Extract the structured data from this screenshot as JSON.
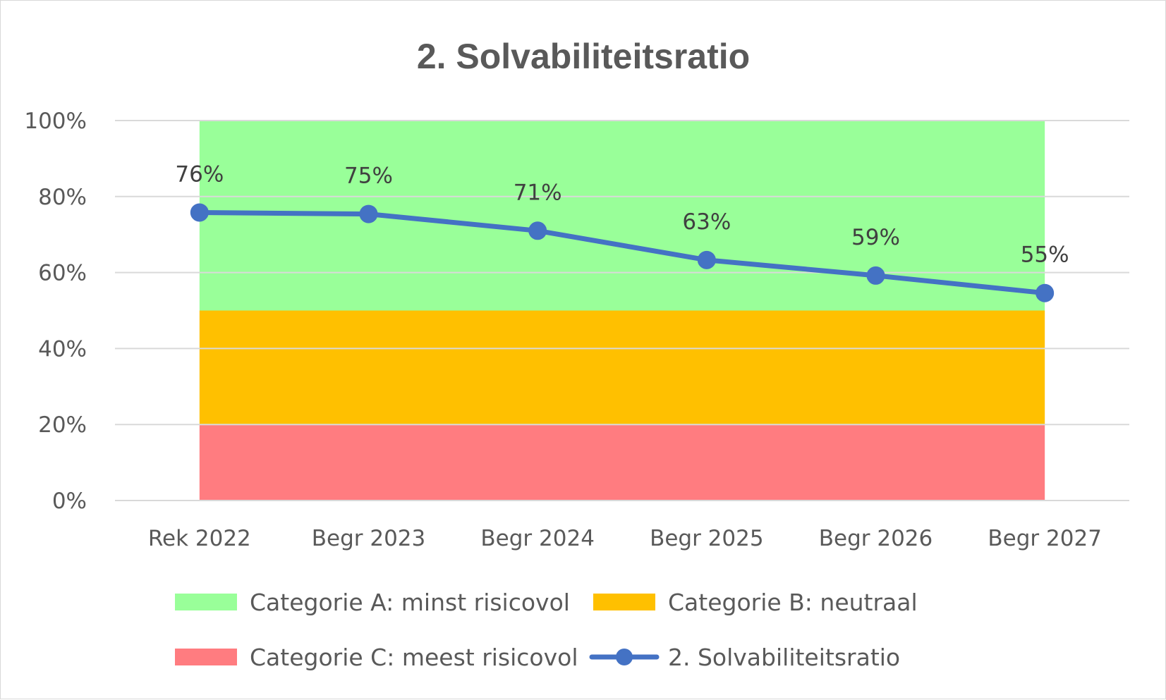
{
  "chart_data": {
    "type": "line",
    "title": "2. Solvabiliteitsratio",
    "xlabel": "",
    "ylabel": "",
    "categories": [
      "Rek 2022",
      "Begr 2023",
      "Begr 2024",
      "Begr 2025",
      "Begr 2026",
      "Begr 2027"
    ],
    "ylim": [
      0,
      100
    ],
    "yticks": [
      0,
      20,
      40,
      60,
      80,
      100
    ],
    "ytick_labels": [
      "0%",
      "20%",
      "40%",
      "60%",
      "80%",
      "100%"
    ],
    "grid": true,
    "bands": [
      {
        "name": "Categorie C: meest risicovol",
        "from": 0,
        "to": 20,
        "color": "#ff7c80"
      },
      {
        "name": "Categorie B: neutraal",
        "from": 20,
        "to": 50,
        "color": "#ffc000"
      },
      {
        "name": "Categorie A: minst risicovol",
        "from": 50,
        "to": 100,
        "color": "#99ff99"
      }
    ],
    "series": [
      {
        "name": "2. Solvabiliteitsratio",
        "values": [
          75.8,
          75.4,
          71.0,
          63.3,
          59.2,
          54.6
        ],
        "labels": [
          "76%",
          "75%",
          "71%",
          "63%",
          "59%",
          "55%"
        ],
        "color": "#4472c4"
      }
    ],
    "legend": {
      "placement": "bottom",
      "items": [
        {
          "label": "Categorie A: minst risicovol",
          "color": "#99ff99",
          "kind": "box"
        },
        {
          "label": "Categorie B: neutraal",
          "color": "#ffc000",
          "kind": "box"
        },
        {
          "label": "Categorie C: meest risicovol",
          "color": "#ff7c80",
          "kind": "box"
        },
        {
          "label": "2. Solvabiliteitsratio",
          "color": "#4472c4",
          "kind": "line-marker"
        }
      ]
    }
  }
}
